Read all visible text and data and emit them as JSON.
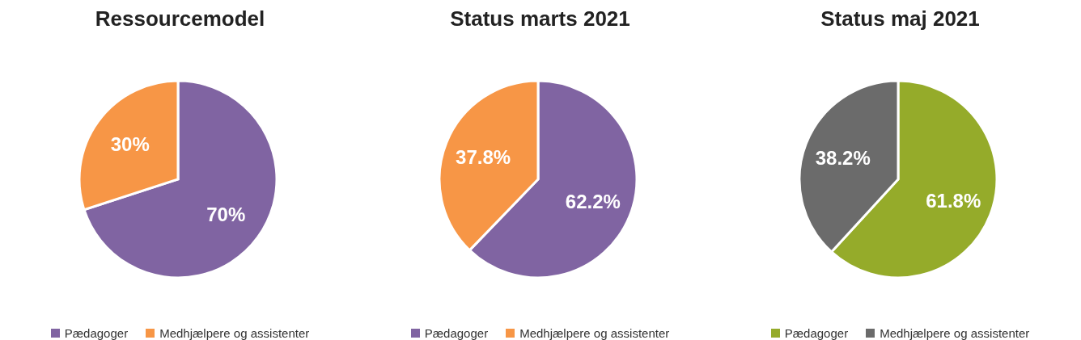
{
  "chart_data": [
    {
      "type": "pie",
      "title": "Ressourcemodel",
      "categories": [
        "Pædagoger",
        "Medhjælpere og assistenter"
      ],
      "values": [
        70,
        30
      ],
      "colors": [
        "#8064a2",
        "#f79646"
      ],
      "value_labels": [
        "70%",
        "30%"
      ],
      "legend": "bottom"
    },
    {
      "type": "pie",
      "title": "Status marts 2021",
      "categories": [
        "Pædagoger",
        "Medhjælpere og assistenter"
      ],
      "values": [
        62.2,
        37.8
      ],
      "colors": [
        "#8064a2",
        "#f79646"
      ],
      "value_labels": [
        "62.2%",
        "37.8%"
      ],
      "legend": "bottom"
    },
    {
      "type": "pie",
      "title": "Status maj 2021",
      "categories": [
        "Pædagoger",
        "Medhjælpere og assistenter"
      ],
      "values": [
        61.8,
        38.2
      ],
      "colors": [
        "#95ab2a",
        "#6b6b6b"
      ],
      "value_labels": [
        "61.8%",
        "38.2%"
      ],
      "legend": "bottom"
    }
  ]
}
